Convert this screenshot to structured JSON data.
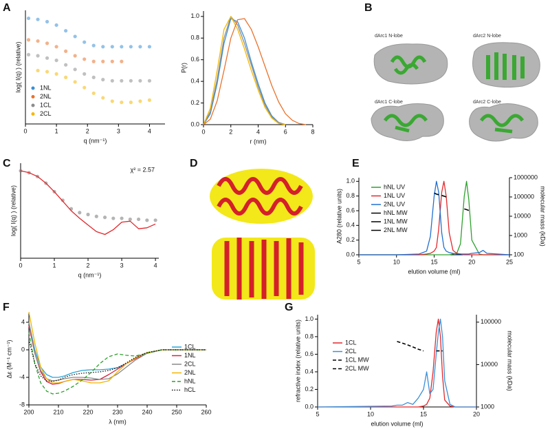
{
  "panel_letters": [
    "A",
    "B",
    "C",
    "D",
    "E",
    "F",
    "G"
  ],
  "structures": [
    "dArc1 N-lobe",
    "dArc2 N-lobe",
    "dArc1 C-lobe",
    "dArc2 C-lobe"
  ],
  "chart_data": [
    {
      "type": "line",
      "xlabel": "q (nm⁻¹)",
      "ylabel": "log( I(q) ) (relative)",
      "legend": "lower left",
      "xlim": [
        0,
        4.5
      ],
      "xticks": [
        0,
        1,
        2,
        3,
        4
      ],
      "ylim": [
        0,
        10
      ],
      "x": [
        0.1,
        0.4,
        0.7,
        1.0,
        1.3,
        1.6,
        1.9,
        2.2,
        2.5,
        2.8,
        3.1,
        3.4,
        3.7,
        4.0
      ],
      "series": [
        {
          "name": "1NL",
          "color": "#3a8fd6",
          "style": "points",
          "values": [
            9.3,
            9.2,
            9.0,
            8.7,
            8.2,
            7.7,
            7.2,
            6.9,
            6.8,
            6.8,
            6.8,
            6.8,
            6.8,
            6.8
          ]
        },
        {
          "name": "2NL",
          "color": "#e8722c",
          "style": "points",
          "values": [
            7.4,
            7.3,
            7.1,
            6.8,
            6.4,
            6.0,
            5.7,
            5.5,
            5.5,
            5.5,
            5.5,
            null,
            null,
            null
          ]
        },
        {
          "name": "1CL",
          "color": "#8c8c8c",
          "style": "points",
          "values": [
            6.1,
            6.0,
            5.8,
            5.6,
            5.2,
            4.8,
            4.4,
            4.1,
            3.9,
            3.8,
            3.8,
            3.8,
            3.8,
            3.8
          ]
        },
        {
          "name": "2CL",
          "color": "#f5b800",
          "style": "points",
          "values": [
            null,
            4.7,
            4.6,
            4.4,
            4.1,
            3.7,
            3.2,
            2.7,
            2.3,
            2.0,
            1.9,
            1.9,
            2.0,
            2.1
          ]
        }
      ]
    },
    {
      "type": "line",
      "xlabel": "r (nm)",
      "ylabel": "P(r)",
      "xlim": [
        0,
        8
      ],
      "xticks": [
        0,
        2,
        4,
        6,
        8
      ],
      "ylim": [
        0,
        1.05
      ],
      "yticks": [
        {
          "value": 0,
          "label": "0.0"
        },
        {
          "value": 0.2,
          "label": "0.2"
        },
        {
          "value": 0.4,
          "label": "0.4"
        },
        {
          "value": 0.6,
          "label": "0.6"
        },
        {
          "value": 0.8,
          "label": "0.8"
        },
        {
          "value": 1,
          "label": "1.0"
        }
      ],
      "x": [
        0,
        0.5,
        1,
        1.5,
        2,
        2.5,
        3,
        3.5,
        4,
        4.5,
        5,
        5.5,
        6,
        6.5,
        7,
        7.5,
        8
      ],
      "series": [
        {
          "color": "#3a8fd6",
          "values": [
            0,
            0.1,
            0.38,
            0.75,
            0.98,
            0.95,
            0.8,
            0.58,
            0.38,
            0.2,
            0.08,
            0.02,
            0,
            null,
            null,
            null,
            null
          ]
        },
        {
          "color": "#8c8c8c",
          "values": [
            0,
            0.12,
            0.42,
            0.8,
            1.0,
            0.92,
            0.75,
            0.55,
            0.35,
            0.18,
            0.07,
            0.02,
            0,
            null,
            null,
            null,
            null
          ]
        },
        {
          "color": "#f5b800",
          "values": [
            0,
            0.15,
            0.5,
            0.88,
            1.0,
            0.88,
            0.7,
            0.5,
            0.32,
            0.16,
            0.06,
            0.01,
            0,
            null,
            null,
            null,
            null
          ]
        },
        {
          "color": "#e8722c",
          "values": [
            0,
            0.05,
            0.22,
            0.5,
            0.8,
            0.97,
            0.98,
            0.88,
            0.72,
            0.54,
            0.36,
            0.21,
            0.1,
            0.04,
            0.01,
            0,
            null
          ]
        }
      ]
    },
    {
      "type": "line",
      "xlabel": "q (nm⁻¹)",
      "ylabel": "log( I(q) ) (relative)",
      "annotation": "χ² = 2.57",
      "xlim": [
        0,
        4.1
      ],
      "xticks": [
        0,
        1,
        2,
        3,
        4
      ],
      "ylim": [
        0,
        10
      ],
      "x": [
        0,
        0.25,
        0.5,
        0.75,
        1,
        1.25,
        1.5,
        1.75,
        2,
        2.25,
        2.5,
        2.75,
        3,
        3.25,
        3.5,
        3.75,
        4
      ],
      "series": [
        {
          "color": "#777777",
          "style": "points",
          "values": [
            9.2,
            9.0,
            8.6,
            7.9,
            7.0,
            6.1,
            5.2,
            4.8,
            4.6,
            4.4,
            4.3,
            4.2,
            4.2,
            4.1,
            4.1,
            4.0,
            4.0
          ]
        },
        {
          "color": "#e3262a",
          "values": [
            9.2,
            9.0,
            8.6,
            7.9,
            7.0,
            6.0,
            5.0,
            4.2,
            3.5,
            2.8,
            2.5,
            3.0,
            3.8,
            3.9,
            3.1,
            3.2,
            3.6
          ]
        }
      ]
    },
    {
      "type": "line",
      "xlabel": "elution volume (ml)",
      "ylabel": "A280 (relative units)",
      "y2label": "molecular mass (kDa)",
      "legend": "upper left",
      "xlim": [
        5,
        25
      ],
      "xticks": [
        5,
        10,
        15,
        20,
        25
      ],
      "ylim": [
        0,
        1.05
      ],
      "yticks": [
        {
          "value": 0,
          "label": "0.0"
        },
        {
          "value": 0.2,
          "label": "0.2"
        },
        {
          "value": 0.4,
          "label": "0.4"
        },
        {
          "value": 0.6,
          "label": "0.6"
        },
        {
          "value": 0.8,
          "label": "0.8"
        },
        {
          "value": 1,
          "label": "1.0"
        }
      ],
      "y2lim": [
        100,
        1000000
      ],
      "y2ticks": [
        100,
        1000,
        10000,
        100000,
        1000000
      ],
      "y2log": true,
      "x": [
        5,
        10,
        13,
        14,
        14.5,
        15,
        15.3,
        15.6,
        16,
        16.3,
        16.6,
        17,
        17.5,
        18,
        18.5,
        19,
        19.3,
        19.6,
        20,
        21,
        21.5,
        22,
        25
      ],
      "series": [
        {
          "name": "hNL UV",
          "color": "#2ca02c",
          "values": [
            0,
            0,
            0,
            0,
            0,
            0,
            0,
            0,
            0,
            0,
            0,
            0,
            0.01,
            0.02,
            0.15,
            0.8,
            1.0,
            0.75,
            0.2,
            0.01,
            0,
            0,
            0
          ]
        },
        {
          "name": "1NL UV",
          "color": "#e3262a",
          "values": [
            0,
            0,
            0,
            0.01,
            0.02,
            0.05,
            0.1,
            0.35,
            0.85,
            1.0,
            0.8,
            0.3,
            0.06,
            0.02,
            0.01,
            0,
            0,
            0,
            0,
            0,
            0,
            0,
            0
          ]
        },
        {
          "name": "2NL UV",
          "color": "#1f6fd1",
          "values": [
            0,
            0,
            0.01,
            0.05,
            0.25,
            0.8,
            1.0,
            0.85,
            0.3,
            0.1,
            0.05,
            0.03,
            0.02,
            0.01,
            0.01,
            0.01,
            0.01,
            0.01,
            0.02,
            0.03,
            0.06,
            0.02,
            0
          ]
        },
        {
          "name": "hNL MW",
          "color": "#000000",
          "axis": "y2",
          "values": [
            null,
            null,
            null,
            null,
            null,
            null,
            null,
            null,
            null,
            null,
            null,
            null,
            null,
            null,
            null,
            24000,
            22000,
            20000,
            null,
            null,
            null,
            null,
            null
          ]
        },
        {
          "name": "1NL MW",
          "color": "#000000",
          "axis": "y2",
          "values": [
            null,
            null,
            null,
            null,
            null,
            null,
            null,
            null,
            120000,
            110000,
            100000,
            null,
            null,
            null,
            null,
            null,
            null,
            null,
            null,
            null,
            null,
            null,
            null
          ]
        },
        {
          "name": "2NL MW",
          "color": "#000000",
          "axis": "y2",
          "values": [
            null,
            null,
            null,
            null,
            null,
            160000,
            140000,
            130000,
            null,
            null,
            null,
            null,
            null,
            null,
            null,
            null,
            null,
            null,
            null,
            null,
            null,
            null,
            null
          ]
        }
      ]
    },
    {
      "type": "line",
      "xlabel": "λ (nm)",
      "ylabel": "Δε (M⁻¹ cm⁻¹)",
      "legend": "right",
      "xlim": [
        200,
        260
      ],
      "xticks": [
        200,
        210,
        220,
        230,
        240,
        250,
        260
      ],
      "ylim": [
        -8,
        5.3
      ],
      "yticks": [
        -8,
        -4,
        0,
        4
      ],
      "x": [
        200,
        202,
        204,
        206,
        208,
        210,
        212,
        215,
        218,
        221,
        224,
        227,
        230,
        233,
        236,
        240,
        245,
        250,
        255,
        260
      ],
      "series": [
        {
          "name": "1CL",
          "color": "#2aa3d6",
          "values": [
            4,
            0,
            -2.5,
            -3.6,
            -4.0,
            -4.0,
            -3.8,
            -3.3,
            -3.0,
            -2.9,
            -2.9,
            -2.8,
            -2.6,
            -2.0,
            -1.2,
            -0.4,
            0,
            0,
            0,
            0
          ]
        },
        {
          "name": "1NL",
          "color": "#d62040",
          "values": [
            3.5,
            -0.5,
            -3.2,
            -4.6,
            -5.0,
            -4.9,
            -4.6,
            -4.3,
            -4.3,
            -4.4,
            -4.3,
            -3.6,
            -2.8,
            -2.0,
            -1.3,
            -0.5,
            0,
            0,
            0,
            0
          ]
        },
        {
          "name": "2CL",
          "color": "#888888",
          "values": [
            4,
            -0.5,
            -3,
            -4.2,
            -4.5,
            -4.4,
            -4.2,
            -4.0,
            -4.0,
            -4.1,
            -4.3,
            -4.2,
            -3.5,
            -2.5,
            -1.5,
            -0.5,
            0,
            0,
            0,
            0
          ]
        },
        {
          "name": "2NL",
          "color": "#f0b400",
          "values": [
            5.5,
            1,
            -2.5,
            -4.2,
            -4.8,
            -4.8,
            -4.6,
            -4.3,
            -4.5,
            -4.8,
            -4.8,
            -4.5,
            -3.2,
            -2.0,
            -1.2,
            -0.4,
            0,
            0,
            0,
            0
          ]
        },
        {
          "name": "hNL",
          "color": "#2aa02a",
          "dash": "dashed",
          "values": [
            2.5,
            -2,
            -4.8,
            -6,
            -6.4,
            -6.3,
            -6,
            -5.3,
            -4.4,
            -3.3,
            -2.0,
            -1.0,
            -0.6,
            -0.8,
            -0.9,
            -0.5,
            0,
            0,
            0,
            0
          ]
        },
        {
          "name": "hCL",
          "color": "#111111",
          "dash": "dotted",
          "values": [
            1.5,
            -2,
            -3.8,
            -4.5,
            -4.6,
            -4.4,
            -4.0,
            -3.6,
            -3.4,
            -3.3,
            -3.2,
            -3.0,
            -2.6,
            -1.9,
            -1.1,
            -0.4,
            0,
            0,
            0,
            0
          ]
        }
      ]
    },
    {
      "type": "line",
      "xlabel": "elution volume (ml)",
      "ylabel": "refractive index (relative units)",
      "y2label": "molecular mass (kDa)",
      "legend": "left",
      "xlim": [
        5,
        20
      ],
      "xticks": [
        5,
        10,
        15,
        20
      ],
      "ylim": [
        0,
        1.05
      ],
      "yticks": [
        {
          "value": 0,
          "label": "0.0"
        },
        {
          "value": 0.2,
          "label": "0.2"
        },
        {
          "value": 0.4,
          "label": "0.4"
        },
        {
          "value": 0.6,
          "label": "0.6"
        },
        {
          "value": 0.8,
          "label": "0.8"
        },
        {
          "value": 1,
          "label": "1.0"
        }
      ],
      "y2lim": [
        1000,
        150000
      ],
      "y2ticks": [
        1000,
        10000,
        100000
      ],
      "y2log": true,
      "x": [
        5,
        12,
        12.5,
        13,
        13.5,
        14,
        14.5,
        15,
        15.3,
        15.6,
        15.9,
        16.2,
        16.4,
        16.6,
        16.8,
        17,
        17.5,
        18,
        20
      ],
      "series": [
        {
          "name": "1CL",
          "color": "#e3262a",
          "values": [
            0,
            0,
            0,
            0,
            0,
            0,
            0,
            0.01,
            0.03,
            0.1,
            0.4,
            0.85,
            1.0,
            0.8,
            0.35,
            0.08,
            0.01,
            0,
            0
          ]
        },
        {
          "name": "2CL",
          "color": "#3a8fd6",
          "values": [
            0,
            0.01,
            0.02,
            0.02,
            0.05,
            0.03,
            0.1,
            0.2,
            0.4,
            0.15,
            0.2,
            0.6,
            0.85,
            1.0,
            0.8,
            0.3,
            0.03,
            0,
            0
          ]
        },
        {
          "name": "1CL MW",
          "color": "#000000",
          "axis": "y2",
          "dash": "dashed",
          "values": [
            null,
            null,
            35000,
            32000,
            29000,
            26000,
            23000,
            21000,
            null,
            null,
            null,
            null,
            null,
            null,
            null,
            null,
            null,
            null,
            null
          ]
        },
        {
          "name": "2CL MW",
          "color": "#000000",
          "axis": "y2",
          "dash": "dashed",
          "values": [
            null,
            null,
            null,
            null,
            null,
            null,
            null,
            null,
            null,
            null,
            null,
            21000,
            21000,
            21000,
            21000,
            null,
            null,
            null,
            null
          ]
        }
      ]
    }
  ]
}
